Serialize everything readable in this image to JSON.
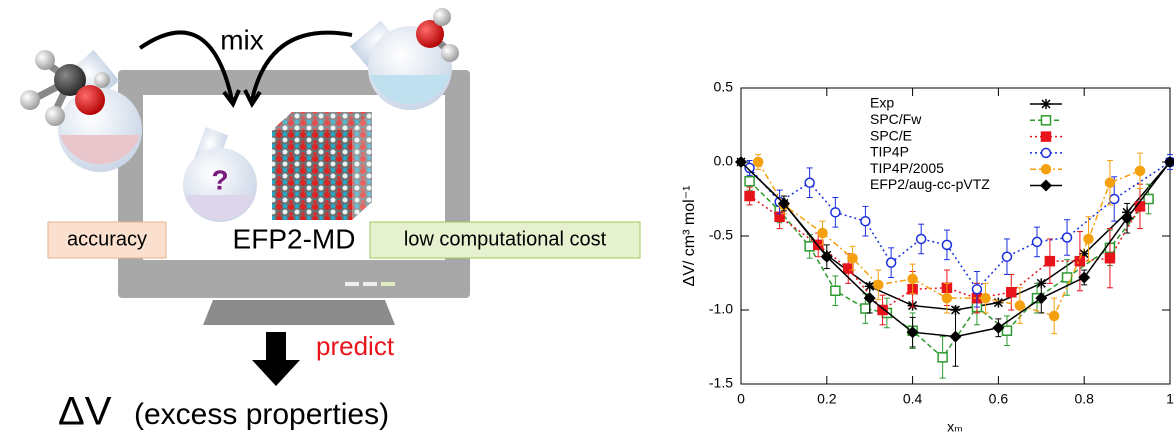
{
  "diagram": {
    "mix": "mix",
    "question": "?",
    "accuracy": "accuracy",
    "method": "EFP2-MD",
    "cost": "low computational cost",
    "predict": "predict",
    "quantity": "ΔV",
    "quantity_note": "(excess properties)"
  },
  "chart_data": {
    "type": "line",
    "x_label": "xₘ",
    "y_label": "ΔV/ cm³ mol⁻¹",
    "xlim": [
      0,
      1
    ],
    "ylim": [
      -1.5,
      0.5
    ],
    "xticks": [
      0,
      0.2,
      0.4,
      0.6,
      0.8,
      1
    ],
    "yticks": [
      0.5,
      {
        "value": 0,
        "label": "0.0"
      },
      -0.5,
      {
        "value": -1,
        "label": "-1.0"
      },
      -1.5
    ],
    "legend": "top-right",
    "series": [
      {
        "name": "Exp",
        "color": "#000000",
        "marker": "star",
        "dash": "solid",
        "x": [
          0,
          0.1,
          0.2,
          0.3,
          0.4,
          0.5,
          0.6,
          0.7,
          0.8,
          0.9,
          1
        ],
        "values": [
          0,
          -0.28,
          -0.63,
          -0.84,
          -0.97,
          -1.0,
          -0.95,
          -0.82,
          -0.62,
          -0.34,
          0
        ]
      },
      {
        "name": "SPC/Fw",
        "color": "#2e9a2e",
        "marker": "square-open",
        "dash": "dashed",
        "x": [
          0.02,
          0.09,
          0.16,
          0.22,
          0.29,
          0.34,
          0.4,
          0.47,
          0.55,
          0.62,
          0.69,
          0.76,
          0.86,
          0.95
        ],
        "values": [
          -0.13,
          -0.33,
          -0.57,
          -0.87,
          -0.99,
          -1.02,
          -1.14,
          -1.32,
          -0.98,
          -1.14,
          -0.92,
          -0.78,
          -0.58,
          -0.25
        ],
        "errors": [
          0.06,
          0.08,
          0.08,
          0.1,
          0.1,
          0.1,
          0.12,
          0.14,
          0.12,
          0.1,
          0.1,
          0.12,
          0.12,
          0.1
        ]
      },
      {
        "name": "SPC/E",
        "color": "#e8141c",
        "marker": "square",
        "dash": "dotted",
        "x": [
          0.02,
          0.09,
          0.18,
          0.25,
          0.33,
          0.4,
          0.48,
          0.55,
          0.63,
          0.72,
          0.79,
          0.86,
          0.93
        ],
        "values": [
          -0.23,
          -0.37,
          -0.56,
          -0.72,
          -1.0,
          -0.86,
          -0.85,
          -0.92,
          -0.88,
          -0.67,
          -0.67,
          -0.65,
          -0.3
        ],
        "errors": [
          0.06,
          0.08,
          0.08,
          0.1,
          0.1,
          0.12,
          0.12,
          0.1,
          0.12,
          0.15,
          0.2,
          0.2,
          0.15
        ]
      },
      {
        "name": "TIP4P",
        "color": "#1a2ee0",
        "marker": "circle-open",
        "dash": "dotted",
        "x": [
          0.02,
          0.09,
          0.16,
          0.22,
          0.29,
          0.35,
          0.42,
          0.48,
          0.55,
          0.62,
          0.69,
          0.76,
          0.87,
          1
        ],
        "values": [
          -0.04,
          -0.27,
          -0.14,
          -0.34,
          -0.4,
          -0.68,
          -0.52,
          -0.56,
          -0.86,
          -0.64,
          -0.54,
          -0.51,
          -0.25,
          0
        ],
        "errors": [
          0.05,
          0.08,
          0.1,
          0.1,
          0.1,
          0.1,
          0.1,
          0.1,
          0.12,
          0.12,
          0.1,
          0.12,
          0.15,
          0.05
        ]
      },
      {
        "name": "TIP4P/2005",
        "color": "#f5a00f",
        "marker": "circle",
        "dash": "dashdot",
        "x": [
          0.04,
          0.1,
          0.19,
          0.26,
          0.32,
          0.4,
          0.48,
          0.57,
          0.65,
          0.73,
          0.81,
          0.86,
          0.93
        ],
        "values": [
          0,
          -0.29,
          -0.48,
          -0.65,
          -0.83,
          -0.79,
          -0.92,
          -0.92,
          -0.97,
          -1.04,
          -0.52,
          -0.14,
          -0.06
        ],
        "errors": [
          0.05,
          0.06,
          0.08,
          0.08,
          0.1,
          0.1,
          0.1,
          0.1,
          0.12,
          0.12,
          0.15,
          0.15,
          0.12
        ]
      },
      {
        "name": "EFP2/aug-cc-pVTZ",
        "color": "#000000",
        "marker": "diamond",
        "dash": "solid",
        "x": [
          0,
          0.1,
          0.2,
          0.3,
          0.4,
          0.5,
          0.6,
          0.7,
          0.8,
          0.9,
          1
        ],
        "values": [
          0,
          -0.28,
          -0.64,
          -0.92,
          -1.15,
          -1.18,
          -1.12,
          -0.92,
          -0.78,
          -0.38,
          0
        ],
        "errors": [
          0.02,
          0.05,
          0.08,
          0.1,
          0.1,
          0.2,
          0.06,
          0.1,
          0.05,
          0.1,
          0.02
        ]
      }
    ]
  }
}
